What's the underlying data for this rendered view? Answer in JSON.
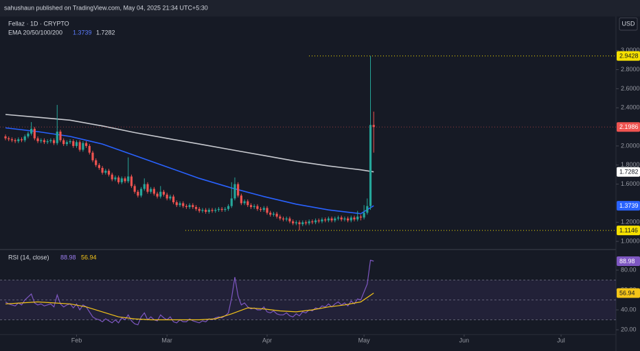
{
  "chart_data": {
    "type": "candlestick",
    "title": "sahushaun published on TradingView.com, May 04, 2025 21:34 UTC+5:30",
    "symbol": "Fellaz · 1D · CRYPTO",
    "currency": "USD",
    "up_color": "#26a69a",
    "down_color": "#ef5350",
    "xlim": [
      -1.7,
      189
    ],
    "xticks": [
      {
        "value": 22,
        "label": "Feb"
      },
      {
        "value": 50,
        "label": "Mar"
      },
      {
        "value": 81,
        "label": "Apr"
      },
      {
        "value": 111,
        "label": "May"
      },
      {
        "value": 142,
        "label": "Jun"
      },
      {
        "value": 172,
        "label": "Jul"
      }
    ],
    "ylim": [
      0.929,
      3.357
    ],
    "yticks": [
      {
        "value": 1,
        "label": "1.0000"
      },
      {
        "value": 1.2,
        "label": "1.2000"
      },
      {
        "value": 1.6,
        "label": "1.6000"
      },
      {
        "value": 1.8,
        "label": "1.8000"
      },
      {
        "value": 2,
        "label": "2.0000"
      },
      {
        "value": 2.4,
        "label": "2.4000"
      },
      {
        "value": 2.6,
        "label": "2.6000"
      },
      {
        "value": 2.8,
        "label": "2.8000"
      },
      {
        "value": 3,
        "label": "3.0000"
      }
    ],
    "ohlc": [
      [
        2.1,
        2.12,
        2.06,
        2.08
      ],
      [
        2.08,
        2.1,
        2.05,
        2.07
      ],
      [
        2.07,
        2.09,
        2.04,
        2.06
      ],
      [
        2.06,
        2.08,
        2.03,
        2.05
      ],
      [
        2.05,
        2.09,
        2.03,
        2.07
      ],
      [
        2.07,
        2.09,
        2.04,
        2.06
      ],
      [
        2.06,
        2.12,
        2.04,
        2.1
      ],
      [
        2.1,
        2.15,
        2.08,
        2.13
      ],
      [
        2.13,
        2.25,
        2.11,
        2.18
      ],
      [
        2.18,
        2.2,
        2.06,
        2.08
      ],
      [
        2.08,
        2.1,
        2.03,
        2.05
      ],
      [
        2.05,
        2.08,
        2.03,
        2.06
      ],
      [
        2.06,
        2.08,
        2.02,
        2.04
      ],
      [
        2.04,
        2.07,
        2.02,
        2.05
      ],
      [
        2.05,
        2.08,
        2.03,
        2.06
      ],
      [
        2.06,
        2.08,
        2.01,
        2.03
      ],
      [
        2.03,
        2.43,
        2.01,
        2.15
      ],
      [
        2.15,
        2.17,
        2.04,
        2.06
      ],
      [
        2.06,
        2.08,
        2.0,
        2.02
      ],
      [
        2.02,
        2.06,
        2.0,
        2.04
      ],
      [
        2.04,
        2.07,
        2.02,
        2.05
      ],
      [
        2.05,
        2.07,
        1.98,
        2.0
      ],
      [
        2.0,
        2.06,
        1.98,
        2.04
      ],
      [
        2.04,
        2.06,
        1.94,
        1.96
      ],
      [
        1.96,
        2.05,
        1.94,
        2.03
      ],
      [
        2.03,
        2.05,
        1.98,
        2.0
      ],
      [
        2.0,
        2.02,
        1.91,
        1.93
      ],
      [
        1.93,
        1.95,
        1.83,
        1.85
      ],
      [
        1.85,
        1.87,
        1.78,
        1.8
      ],
      [
        1.8,
        1.82,
        1.75,
        1.77
      ],
      [
        1.77,
        1.79,
        1.7,
        1.72
      ],
      [
        1.72,
        1.76,
        1.7,
        1.74
      ],
      [
        1.74,
        1.76,
        1.68,
        1.7
      ],
      [
        1.7,
        1.72,
        1.63,
        1.65
      ],
      [
        1.65,
        1.69,
        1.63,
        1.67
      ],
      [
        1.67,
        1.69,
        1.6,
        1.62
      ],
      [
        1.62,
        1.68,
        1.6,
        1.66
      ],
      [
        1.66,
        1.68,
        1.61,
        1.63
      ],
      [
        1.63,
        1.88,
        1.61,
        1.68
      ],
      [
        1.68,
        1.7,
        1.56,
        1.58
      ],
      [
        1.58,
        1.6,
        1.5,
        1.52
      ],
      [
        1.52,
        1.54,
        1.46,
        1.48
      ],
      [
        1.48,
        1.57,
        1.46,
        1.55
      ],
      [
        1.55,
        1.66,
        1.53,
        1.6
      ],
      [
        1.6,
        1.62,
        1.5,
        1.52
      ],
      [
        1.52,
        1.57,
        1.5,
        1.55
      ],
      [
        1.55,
        1.57,
        1.48,
        1.5
      ],
      [
        1.5,
        1.52,
        1.45,
        1.47
      ],
      [
        1.47,
        1.58,
        1.45,
        1.52
      ],
      [
        1.52,
        1.54,
        1.47,
        1.49
      ],
      [
        1.49,
        1.51,
        1.43,
        1.45
      ],
      [
        1.45,
        1.49,
        1.43,
        1.47
      ],
      [
        1.47,
        1.49,
        1.39,
        1.41
      ],
      [
        1.41,
        1.43,
        1.36,
        1.38
      ],
      [
        1.38,
        1.42,
        1.36,
        1.4
      ],
      [
        1.4,
        1.42,
        1.35,
        1.37
      ],
      [
        1.37,
        1.39,
        1.34,
        1.36
      ],
      [
        1.36,
        1.4,
        1.34,
        1.38
      ],
      [
        1.38,
        1.4,
        1.34,
        1.36
      ],
      [
        1.36,
        1.38,
        1.32,
        1.34
      ],
      [
        1.34,
        1.36,
        1.3,
        1.32
      ],
      [
        1.32,
        1.35,
        1.3,
        1.33
      ],
      [
        1.33,
        1.35,
        1.29,
        1.31
      ],
      [
        1.31,
        1.35,
        1.29,
        1.33
      ],
      [
        1.33,
        1.35,
        1.3,
        1.32
      ],
      [
        1.32,
        1.35,
        1.3,
        1.33
      ],
      [
        1.33,
        1.36,
        1.31,
        1.34
      ],
      [
        1.34,
        1.36,
        1.31,
        1.33
      ],
      [
        1.33,
        1.36,
        1.31,
        1.34
      ],
      [
        1.34,
        1.39,
        1.32,
        1.37
      ],
      [
        1.37,
        1.62,
        1.35,
        1.45
      ],
      [
        1.45,
        1.67,
        1.43,
        1.6
      ],
      [
        1.6,
        1.62,
        1.46,
        1.48
      ],
      [
        1.48,
        1.5,
        1.38,
        1.4
      ],
      [
        1.4,
        1.44,
        1.38,
        1.42
      ],
      [
        1.42,
        1.44,
        1.36,
        1.38
      ],
      [
        1.38,
        1.4,
        1.34,
        1.36
      ],
      [
        1.36,
        1.39,
        1.34,
        1.37
      ],
      [
        1.37,
        1.39,
        1.32,
        1.34
      ],
      [
        1.34,
        1.36,
        1.31,
        1.33
      ],
      [
        1.33,
        1.37,
        1.31,
        1.35
      ],
      [
        1.35,
        1.37,
        1.28,
        1.3
      ],
      [
        1.3,
        1.32,
        1.26,
        1.28
      ],
      [
        1.28,
        1.31,
        1.26,
        1.29
      ],
      [
        1.29,
        1.31,
        1.24,
        1.26
      ],
      [
        1.26,
        1.28,
        1.22,
        1.24
      ],
      [
        1.24,
        1.26,
        1.21,
        1.23
      ],
      [
        1.23,
        1.26,
        1.21,
        1.24
      ],
      [
        1.24,
        1.26,
        1.19,
        1.21
      ],
      [
        1.21,
        1.23,
        1.17,
        1.19
      ],
      [
        1.19,
        1.22,
        1.17,
        1.2
      ],
      [
        1.2,
        1.22,
        1.1146,
        1.18
      ],
      [
        1.18,
        1.22,
        1.16,
        1.2
      ],
      [
        1.2,
        1.22,
        1.17,
        1.19
      ],
      [
        1.19,
        1.23,
        1.17,
        1.21
      ],
      [
        1.21,
        1.23,
        1.18,
        1.2
      ],
      [
        1.2,
        1.24,
        1.18,
        1.22
      ],
      [
        1.22,
        1.24,
        1.19,
        1.21
      ],
      [
        1.21,
        1.25,
        1.19,
        1.23
      ],
      [
        1.23,
        1.25,
        1.2,
        1.22
      ],
      [
        1.22,
        1.26,
        1.2,
        1.24
      ],
      [
        1.24,
        1.26,
        1.2,
        1.22
      ],
      [
        1.22,
        1.26,
        1.2,
        1.24
      ],
      [
        1.24,
        1.27,
        1.22,
        1.25
      ],
      [
        1.25,
        1.27,
        1.21,
        1.23
      ],
      [
        1.23,
        1.26,
        1.21,
        1.24
      ],
      [
        1.24,
        1.26,
        1.2,
        1.22
      ],
      [
        1.22,
        1.27,
        1.2,
        1.25
      ],
      [
        1.25,
        1.27,
        1.21,
        1.23
      ],
      [
        1.23,
        1.32,
        1.21,
        1.26
      ],
      [
        1.26,
        1.28,
        1.22,
        1.25
      ],
      [
        1.25,
        1.38,
        1.23,
        1.3
      ],
      [
        1.3,
        1.45,
        1.28,
        1.37
      ],
      [
        1.37,
        2.9428,
        1.33,
        2.22
      ],
      [
        2.22,
        2.36,
        1.93,
        2.1986
      ]
    ],
    "ema_label": "EMA 20/50/100/200",
    "ema": [
      {
        "color": "#2962ff",
        "x": [
          0,
          10,
          20,
          30,
          40,
          50,
          60,
          70,
          80,
          90,
          100,
          110,
          114
        ],
        "values": [
          2.19,
          2.15,
          2.1,
          2.02,
          1.9,
          1.78,
          1.66,
          1.56,
          1.47,
          1.39,
          1.33,
          1.29,
          1.3739
        ]
      },
      {
        "color": "#c8cad0",
        "x": [
          0,
          10,
          20,
          30,
          40,
          50,
          60,
          70,
          80,
          90,
          100,
          110,
          114
        ],
        "values": [
          2.33,
          2.3,
          2.27,
          2.21,
          2.14,
          2.08,
          2.02,
          1.96,
          1.9,
          1.84,
          1.79,
          1.75,
          1.7282
        ]
      }
    ],
    "rsi": {
      "title": "RSI (14, close)",
      "color": "#7e57c2",
      "ma_color": "#f5c518",
      "ylim": [
        15.9,
        99.3
      ],
      "yticks": [
        {
          "value": 80,
          "label": "80.00"
        },
        {
          "value": 60,
          "label": "60.00"
        },
        {
          "value": 40,
          "label": "40.00"
        },
        {
          "value": 20,
          "label": "20.00"
        }
      ],
      "levels": [
        70,
        50,
        30
      ],
      "values": [
        48,
        46,
        45,
        44,
        47,
        45,
        50,
        53,
        56,
        47,
        45,
        46,
        44,
        45,
        46,
        43,
        55,
        46,
        43,
        45,
        46,
        42,
        46,
        40,
        45,
        43,
        38,
        33,
        31,
        30,
        28,
        31,
        29,
        27,
        30,
        27,
        32,
        30,
        35,
        29,
        26,
        25,
        33,
        37,
        30,
        33,
        30,
        29,
        35,
        32,
        30,
        33,
        28,
        27,
        30,
        28,
        28,
        31,
        29,
        28,
        27,
        29,
        28,
        31,
        30,
        32,
        33,
        32,
        34,
        37,
        52,
        73,
        54,
        45,
        47,
        43,
        41,
        42,
        40,
        40,
        43,
        38,
        37,
        39,
        36,
        35,
        35,
        37,
        34,
        33,
        36,
        34,
        38,
        37,
        40,
        39,
        42,
        41,
        44,
        43,
        46,
        43,
        46,
        48,
        45,
        47,
        44,
        49,
        46,
        51,
        50,
        58,
        66,
        90,
        88.98
      ],
      "ma": {
        "x": [
          0,
          5,
          10,
          15,
          20,
          25,
          30,
          35,
          40,
          45,
          50,
          55,
          60,
          65,
          70,
          75,
          80,
          85,
          90,
          95,
          100,
          105,
          110,
          114
        ],
        "values": [
          46,
          47,
          48,
          47,
          46,
          43,
          38,
          33,
          31,
          30,
          30,
          30,
          30,
          31,
          36,
          42,
          41,
          39,
          38,
          40,
          43,
          45,
          48,
          56.94
        ]
      }
    }
  }
}
